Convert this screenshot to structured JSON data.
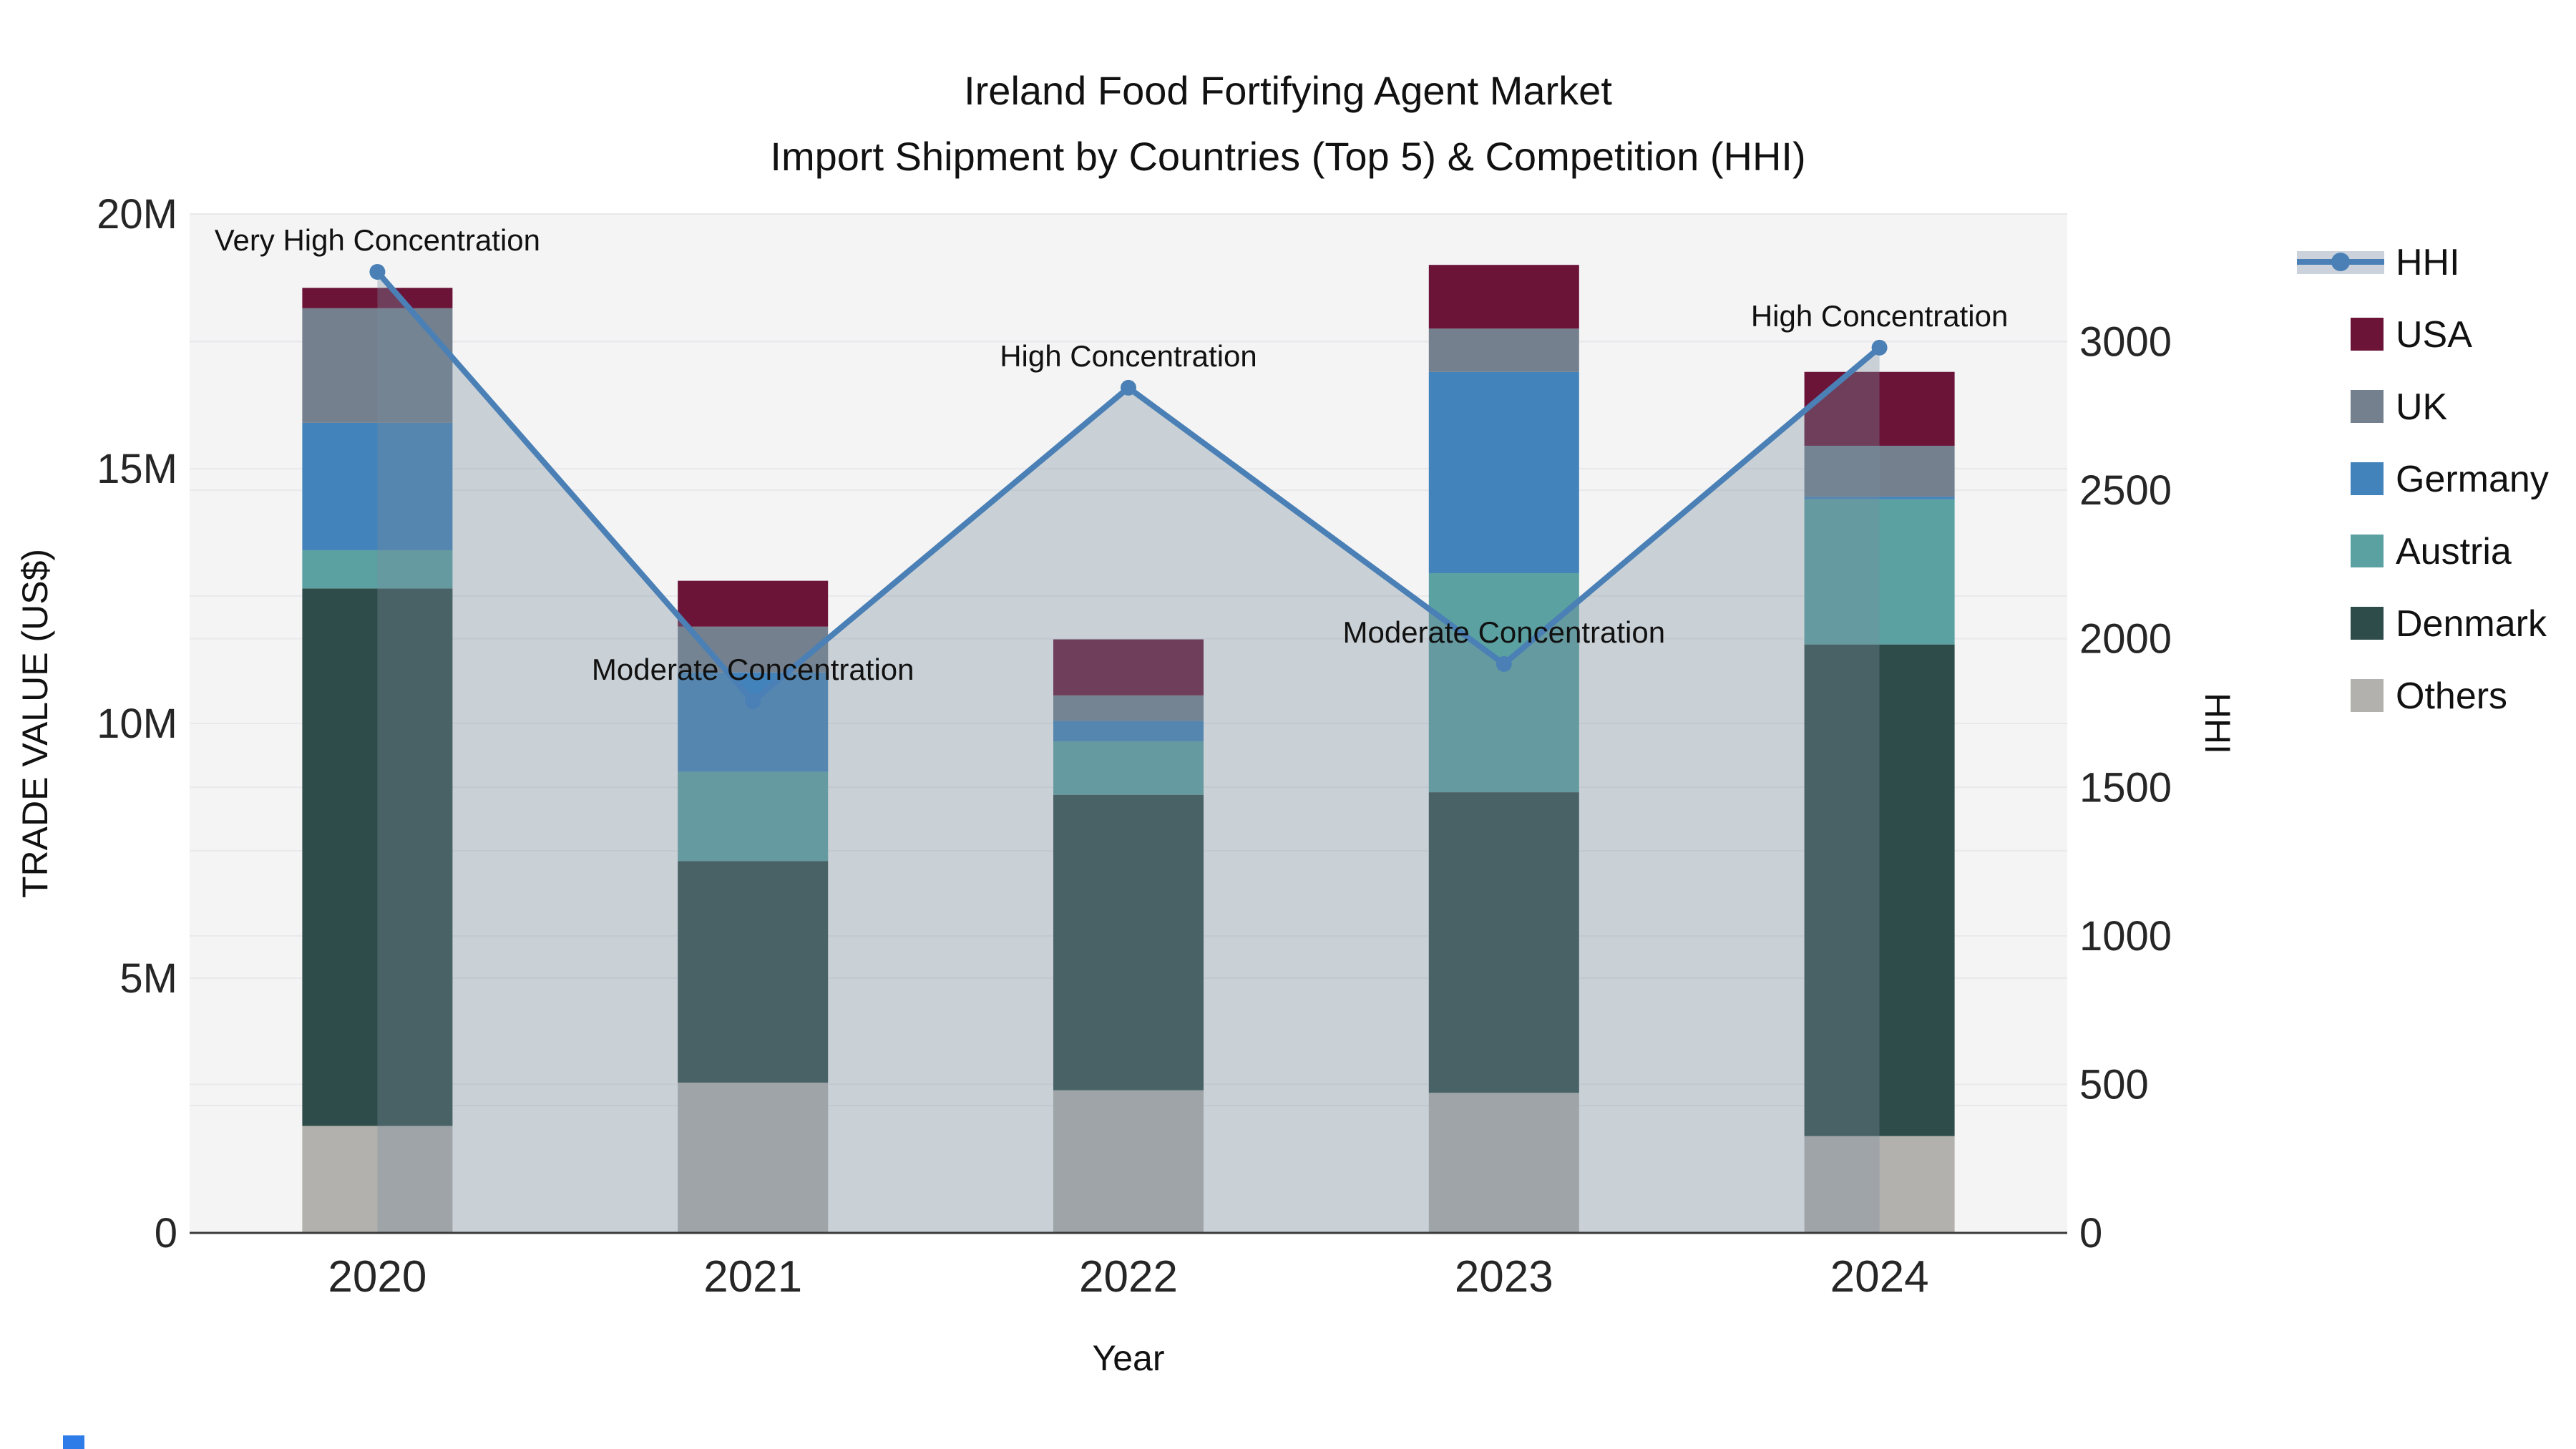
{
  "header": {
    "title_line1": "Ireland Food Fortifying Agent Market",
    "title_line2": "Import Shipment by Countries (Top 5) & Competition (HHI)"
  },
  "chart_data": {
    "type": "stacked-bar-with-line",
    "title": "Ireland Food Fortifying Agent Market Import Shipment by Countries (Top 5) & Competition (HHI)",
    "categories": [
      "2020",
      "2021",
      "2022",
      "2023",
      "2024"
    ],
    "value_unit": "Million US$",
    "series": [
      {
        "name": "Others",
        "color": "#b2b1ae",
        "values": [
          2.1,
          2.95,
          2.8,
          2.75,
          1.9
        ]
      },
      {
        "name": "Denmark",
        "color": "#2e4c49",
        "values": [
          10.55,
          4.35,
          5.8,
          5.9,
          9.65
        ]
      },
      {
        "name": "Austria",
        "color": "#5ba1a2",
        "values": [
          0.75,
          1.75,
          1.05,
          4.3,
          2.85
        ]
      },
      {
        "name": "Germany",
        "color": "#4283bb",
        "values": [
          2.5,
          1.95,
          0.4,
          3.95,
          0.05
        ]
      },
      {
        "name": "UK",
        "color": "#74808e",
        "values": [
          2.25,
          0.9,
          0.5,
          0.85,
          1.0
        ]
      },
      {
        "name": "USA",
        "color": "#6b1438",
        "values": [
          0.4,
          0.9,
          1.1,
          1.25,
          1.45
        ]
      }
    ],
    "totals": [
      18.55,
      12.8,
      11.65,
      19.0,
      16.9
    ],
    "hhi_series": {
      "name": "HHI",
      "color": "#4a80b5",
      "area_color": "rgba(120,140,158,0.35)",
      "values": [
        3235,
        1790,
        2845,
        1915,
        2980
      ]
    },
    "annotations": [
      "Very High Concentration",
      "Moderate Concentration",
      "High Concentration",
      "Moderate Concentration",
      "High Concentration"
    ],
    "left_axis": {
      "label": "TRADE VALUE (US$)",
      "tick_values": [
        0,
        5,
        10,
        15,
        20
      ],
      "tick_labels": [
        "0",
        "5M",
        "10M",
        "15M",
        "20M"
      ],
      "range": [
        0,
        20
      ]
    },
    "right_axis": {
      "label": "HHI",
      "tick_values": [
        0,
        500,
        1000,
        1500,
        2000,
        2500,
        3000
      ],
      "tick_labels": [
        "0",
        "500",
        "1000",
        "1500",
        "2000",
        "2500",
        "3000"
      ],
      "range": [
        0,
        3430
      ]
    },
    "x_axis": {
      "label": "Year"
    },
    "grid": {
      "on": true,
      "color": "#e9e9ec"
    },
    "plot_background": "#f4f4f5",
    "legend_position": "right"
  },
  "legend": {
    "items": [
      {
        "label": "HHI",
        "color": "#4a80b5",
        "type": "line"
      },
      {
        "label": "USA",
        "color": "#6b1438",
        "type": "swatch"
      },
      {
        "label": "UK",
        "color": "#74808e",
        "type": "swatch"
      },
      {
        "label": "Germany",
        "color": "#4283bb",
        "type": "swatch"
      },
      {
        "label": "Austria",
        "color": "#5ba1a2",
        "type": "swatch"
      },
      {
        "label": "Denmark",
        "color": "#2e4c49",
        "type": "swatch"
      },
      {
        "label": "Others",
        "color": "#b2b1ae",
        "type": "swatch"
      }
    ]
  },
  "artifact": {
    "color": "#2e7ce8"
  }
}
